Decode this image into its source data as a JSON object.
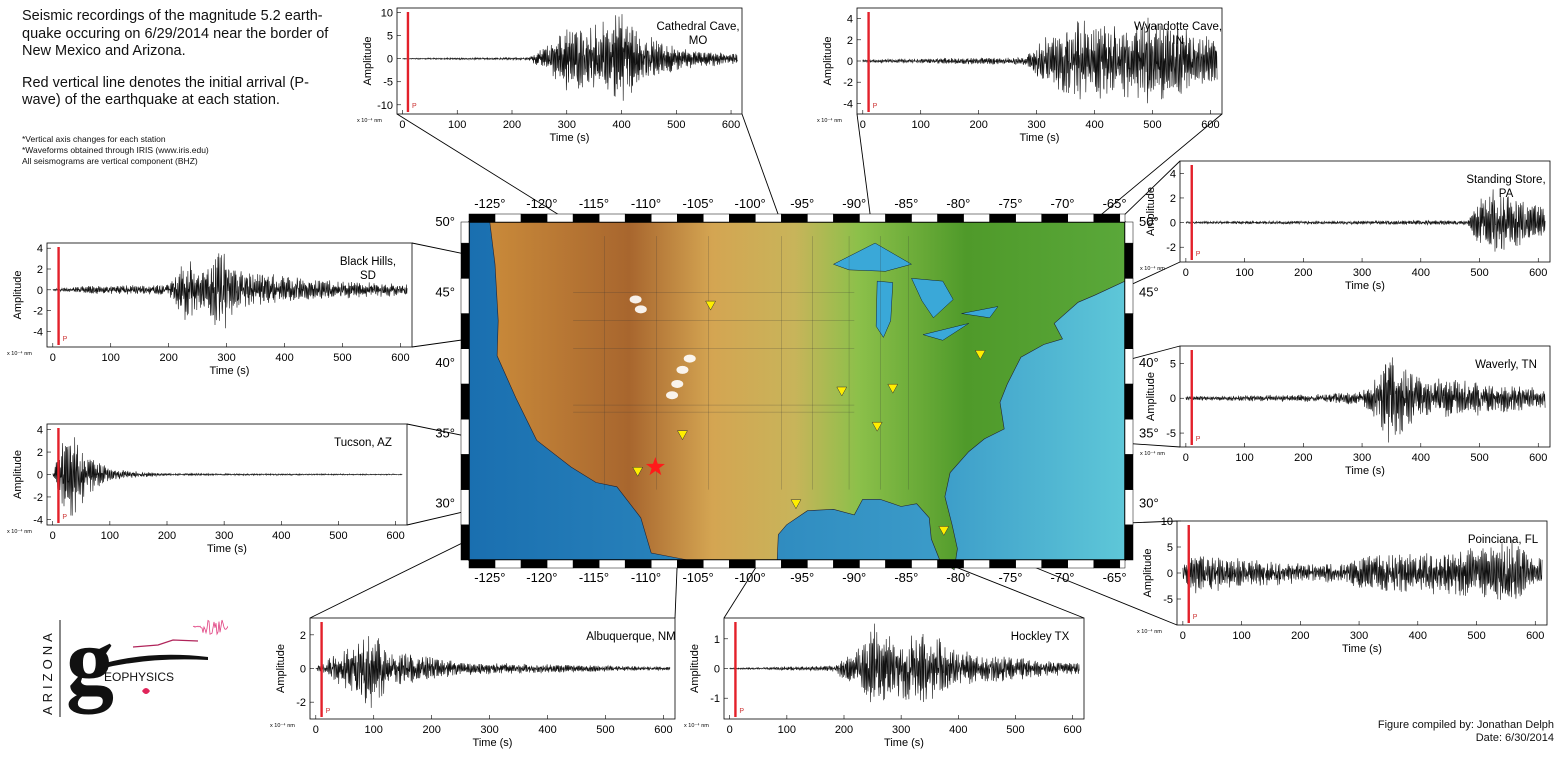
{
  "header": {
    "title": "Seismic recordings of the magnitude 5.2 earth-quake occuring on 6/29/2014 near the border of New Mexico and Arizona.",
    "subtitle": "Red vertical line denotes the initial arrival (P-wave) of the earthquake at each station.",
    "notes": [
      "*Vertical axis changes for each station",
      "*Waveforms obtained through IRIS (www.iris.edu)",
      "All seismograms are vertical component (BHZ)"
    ]
  },
  "credit": {
    "compiled_by": "Figure compiled by: Jonathan Delph",
    "date": "Date: 6/30/2014"
  },
  "logo": {
    "vertical_text": "ARIZONA",
    "letter": "g",
    "text": "EOPHYSICS"
  },
  "map": {
    "lon_ticks": [
      "-125°",
      "-120°",
      "-115°",
      "-110°",
      "-105°",
      "-100°",
      "-95°",
      "-90°",
      "-85°",
      "-80°",
      "-75°",
      "-70°",
      "-65°"
    ],
    "lat_ticks": [
      "50°",
      "45°",
      "40°",
      "35°",
      "30°"
    ],
    "epicenter": {
      "lon": -109.1,
      "lat": 32.6
    },
    "stations": [
      {
        "name": "Black Hills, SD",
        "lon": -103.8,
        "lat": 44.1
      },
      {
        "name": "Tucson, AZ",
        "lon": -110.8,
        "lat": 32.3
      },
      {
        "name": "Albuquerque, NM",
        "lon": -106.5,
        "lat": 34.9
      },
      {
        "name": "Hockley TX",
        "lon": -95.6,
        "lat": 30.0
      },
      {
        "name": "Cathedral Cave, MO",
        "lon": -91.2,
        "lat": 38.0
      },
      {
        "name": "Wyandotte Cave, IN",
        "lon": -86.3,
        "lat": 38.2
      },
      {
        "name": "Standing Store, PA",
        "lon": -77.9,
        "lat": 40.6
      },
      {
        "name": "Waverly, TN",
        "lon": -87.8,
        "lat": 35.5
      },
      {
        "name": "Poinciana, FL",
        "lon": -81.4,
        "lat": 28.1
      }
    ],
    "colors": {
      "ocean_deep": "#1a6fb0",
      "ocean_shallow": "#5ec7d8",
      "lowland": "#4f9a2a",
      "mid": "#c8b45a",
      "high": "#a8662e",
      "peak": "#ffffff",
      "station": "#ffee00",
      "epicenter": "#ff1a1a"
    }
  },
  "chart_data": [
    {
      "type": "line",
      "station": "Cathedral Cave, MO",
      "label": "Cathedral Cave,\nMO",
      "ylabel": "Amplitude",
      "xlabel": "Time (s)",
      "scale": "x 10⁻⁴ nm",
      "ylim": [
        -12,
        11
      ],
      "yticks": [
        10,
        5,
        0,
        -5,
        -10
      ],
      "xlim": [
        -10,
        620
      ],
      "xticks": [
        0,
        100,
        200,
        300,
        400,
        500,
        600
      ],
      "p_arrival": 10,
      "p_label": "P",
      "envelope": [
        [
          0,
          0.1
        ],
        [
          230,
          0.3
        ],
        [
          270,
          3.5
        ],
        [
          300,
          7
        ],
        [
          360,
          8
        ],
        [
          400,
          11
        ],
        [
          430,
          6
        ],
        [
          500,
          2.5
        ],
        [
          600,
          1.2
        ]
      ]
    },
    {
      "type": "line",
      "station": "Wyandotte Cave, IN",
      "label": "Wyandotte Cave,\nIN",
      "ylabel": "Amplitude",
      "xlabel": "Time (s)",
      "scale": "x 10⁻⁴ nm",
      "ylim": [
        -5,
        5
      ],
      "yticks": [
        4,
        2,
        0,
        -2,
        -4
      ],
      "xlim": [
        -10,
        620
      ],
      "xticks": [
        0,
        100,
        200,
        300,
        400,
        500,
        600
      ],
      "p_arrival": 10,
      "p_label": "P",
      "envelope": [
        [
          0,
          0.15
        ],
        [
          280,
          0.4
        ],
        [
          320,
          2.5
        ],
        [
          360,
          4
        ],
        [
          450,
          3.5
        ],
        [
          500,
          4.5
        ],
        [
          600,
          2.2
        ]
      ]
    },
    {
      "type": "line",
      "station": "Black Hills, SD",
      "label": "Black Hills,\nSD",
      "ylabel": "Amplitude",
      "xlabel": "Time (s)",
      "scale": "x 10⁻⁴ nm",
      "ylim": [
        -5.5,
        4.5
      ],
      "yticks": [
        4,
        2,
        0,
        -2,
        -4
      ],
      "xlim": [
        -10,
        620
      ],
      "xticks": [
        0,
        100,
        200,
        300,
        400,
        500,
        600
      ],
      "p_arrival": 10,
      "p_label": "P",
      "envelope": [
        [
          0,
          0.1
        ],
        [
          60,
          0.4
        ],
        [
          200,
          0.5
        ],
        [
          230,
          3.2
        ],
        [
          260,
          2
        ],
        [
          290,
          4.5
        ],
        [
          320,
          2
        ],
        [
          450,
          1
        ],
        [
          600,
          0.6
        ]
      ]
    },
    {
      "type": "line",
      "station": "Tucson, AZ",
      "label": "Tucson, AZ",
      "ylabel": "Amplitude",
      "xlabel": "Time (s)",
      "scale": "x 10⁻⁴ nm",
      "ylim": [
        -4.5,
        4.5
      ],
      "yticks": [
        4,
        2,
        0,
        -2,
        -4
      ],
      "xlim": [
        -10,
        620
      ],
      "xticks": [
        0,
        100,
        200,
        300,
        400,
        500,
        600
      ],
      "p_arrival": 10,
      "p_label": "P",
      "envelope": [
        [
          0,
          0.2
        ],
        [
          15,
          3
        ],
        [
          35,
          4
        ],
        [
          60,
          2
        ],
        [
          100,
          0.5
        ],
        [
          200,
          0.1
        ],
        [
          600,
          0.05
        ]
      ]
    },
    {
      "type": "line",
      "station": "Albuquerque, NM",
      "label": "Albuquerque, NM",
      "ylabel": "Amplitude",
      "xlabel": "Time (s)",
      "scale": "x 10⁻⁴ nm",
      "ylim": [
        -3,
        3
      ],
      "yticks": [
        2,
        0,
        -2
      ],
      "xlim": [
        -10,
        620
      ],
      "xticks": [
        0,
        100,
        200,
        300,
        400,
        500,
        600
      ],
      "p_arrival": 10,
      "p_label": "P",
      "envelope": [
        [
          0,
          0.05
        ],
        [
          20,
          0.6
        ],
        [
          60,
          1.4
        ],
        [
          90,
          2.8
        ],
        [
          130,
          1.2
        ],
        [
          250,
          0.4
        ],
        [
          600,
          0.1
        ]
      ]
    },
    {
      "type": "line",
      "station": "Hockley TX",
      "label": "Hockley TX",
      "ylabel": "Amplitude",
      "xlabel": "Time (s)",
      "scale": "x 10⁻⁴ nm",
      "ylim": [
        -1.7,
        1.7
      ],
      "yticks": [
        1,
        0,
        -1
      ],
      "xlim": [
        -10,
        620
      ],
      "xticks": [
        0,
        100,
        200,
        300,
        400,
        500,
        600
      ],
      "p_arrival": 10,
      "p_label": "P",
      "envelope": [
        [
          0,
          0.02
        ],
        [
          180,
          0.1
        ],
        [
          230,
          0.8
        ],
        [
          250,
          1.6
        ],
        [
          300,
          1
        ],
        [
          340,
          1.4
        ],
        [
          400,
          0.6
        ],
        [
          600,
          0.2
        ]
      ]
    },
    {
      "type": "line",
      "station": "Standing Store, PA",
      "label": "Standing Store,\nPA",
      "ylabel": "Amplitude",
      "xlabel": "Time (s)",
      "scale": "x 10⁻⁴ nm",
      "ylim": [
        -3.2,
        5
      ],
      "yticks": [
        4,
        2,
        0,
        -2
      ],
      "xlim": [
        -10,
        620
      ],
      "xticks": [
        0,
        100,
        200,
        300,
        400,
        500,
        600
      ],
      "p_arrival": 10,
      "p_label": "P",
      "envelope": [
        [
          0,
          0.1
        ],
        [
          480,
          0.2
        ],
        [
          500,
          2
        ],
        [
          520,
          2.8
        ],
        [
          600,
          1.4
        ]
      ]
    },
    {
      "type": "line",
      "station": "Waverly, TN",
      "label": "Waverly, TN",
      "ylabel": "Amplitude",
      "xlabel": "Time (s)",
      "scale": "x 10⁻⁴ nm",
      "ylim": [
        -7,
        7.5
      ],
      "yticks": [
        5,
        0,
        -5
      ],
      "xlim": [
        -10,
        620
      ],
      "xticks": [
        0,
        100,
        200,
        300,
        400,
        500,
        600
      ],
      "p_arrival": 10,
      "p_label": "P",
      "envelope": [
        [
          0,
          0.3
        ],
        [
          220,
          0.6
        ],
        [
          300,
          1
        ],
        [
          330,
          4
        ],
        [
          340,
          7
        ],
        [
          400,
          3
        ],
        [
          500,
          2.5
        ],
        [
          600,
          1.5
        ]
      ]
    },
    {
      "type": "line",
      "station": "Poinciana, FL",
      "label": "Poinciana, FL",
      "ylabel": "Amplitude",
      "xlabel": "Time (s)",
      "scale": "x 10⁻⁴ nm",
      "ylim": [
        -10,
        10
      ],
      "yticks": [
        10,
        5,
        0,
        -5
      ],
      "xlim": [
        -10,
        620
      ],
      "xticks": [
        0,
        100,
        200,
        300,
        400,
        500,
        600
      ],
      "p_arrival": 10,
      "p_label": "P",
      "envelope": [
        [
          0,
          1.5
        ],
        [
          20,
          4
        ],
        [
          100,
          3
        ],
        [
          200,
          2
        ],
        [
          280,
          2
        ],
        [
          300,
          3.5
        ],
        [
          400,
          4
        ],
        [
          500,
          5
        ],
        [
          560,
          7
        ],
        [
          600,
          3
        ]
      ]
    }
  ]
}
